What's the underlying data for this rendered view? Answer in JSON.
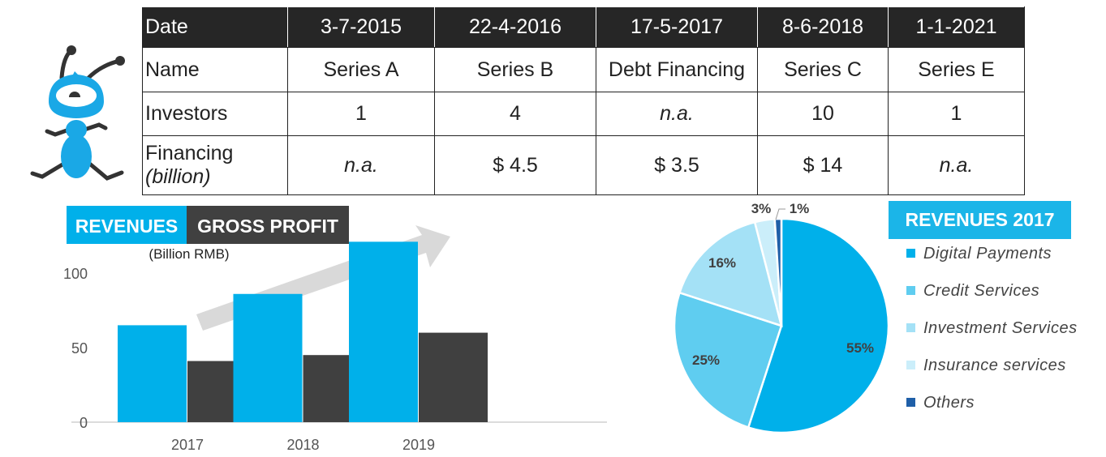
{
  "table": {
    "header": [
      "Date",
      "3-7-2015",
      "22-4-2016",
      "17-5-2017",
      "8-6-2018",
      "1-1-2021"
    ],
    "rows": [
      {
        "label": "Name",
        "cells": [
          "Series A",
          "Series B",
          "Debt Financing",
          "Series C",
          "Series E"
        ]
      },
      {
        "label": "Investors",
        "cells": [
          "1",
          "4",
          "n.a.",
          "10",
          "1"
        ]
      },
      {
        "label": "Financing",
        "label_sub": "(billion)",
        "cells": [
          "n.a.",
          "$ 4.5",
          "$ 3.5",
          "$ 14",
          "n.a."
        ]
      }
    ]
  },
  "chart_data": [
    {
      "type": "bar",
      "categories": [
        "2017",
        "2018",
        "2019"
      ],
      "series": [
        {
          "name": "REVENUES",
          "values": [
            65,
            86,
            121
          ],
          "color": "#00b0ea"
        },
        {
          "name": "GROSS PROFIT",
          "values": [
            41,
            45,
            60
          ],
          "color": "#404040"
        }
      ],
      "ylabel": "(Billion RMB)",
      "yticks": [
        0,
        50,
        100
      ],
      "ylim": [
        0,
        130
      ],
      "grid": false,
      "legend": "top-left"
    },
    {
      "type": "pie",
      "title": "REVENUES 2017",
      "slices": [
        {
          "name": "Digital Payments",
          "value": 55,
          "label": "55%",
          "color": "#00b0ea"
        },
        {
          "name": "Credit Services",
          "value": 25,
          "label": "25%",
          "color": "#5fcdf0"
        },
        {
          "name": "Investment Services",
          "value": 16,
          "label": "16%",
          "color": "#a4e1f6"
        },
        {
          "name": "Insurance services",
          "value": 3,
          "label": "3%",
          "color": "#cbeefa"
        },
        {
          "name": "Others",
          "value": 1,
          "label": "1%",
          "color": "#1f5fa8"
        }
      ],
      "legend": "right"
    }
  ]
}
